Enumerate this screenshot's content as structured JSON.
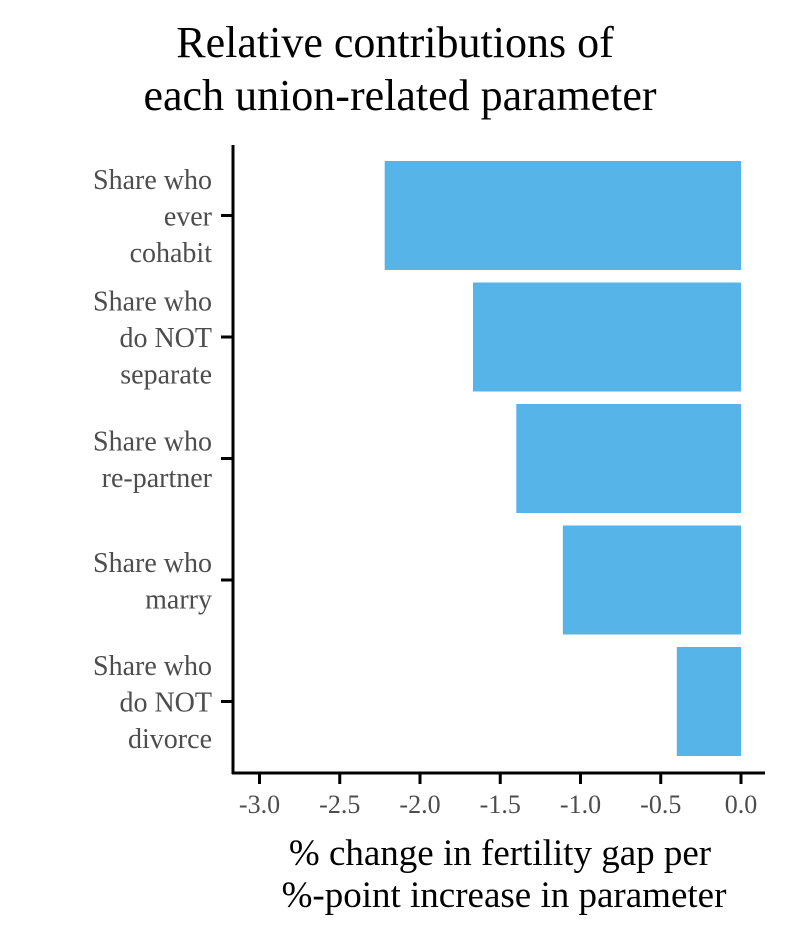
{
  "chart_data": {
    "type": "bar",
    "orientation": "horizontal",
    "title_lines": [
      "Relative contributions of",
      "each union-related parameter"
    ],
    "categories": [
      [
        "Share who",
        "ever",
        "cohabit"
      ],
      [
        "Share who",
        "do NOT",
        "separate"
      ],
      [
        "Share who",
        "re-partner"
      ],
      [
        "Share who",
        "marry"
      ],
      [
        "Share who",
        "do NOT",
        "divorce"
      ]
    ],
    "values": [
      -2.22,
      -1.67,
      -1.4,
      -1.11,
      -0.4
    ],
    "xlabel_lines": [
      "% change in fertility gap per",
      "%-point increase in parameter"
    ],
    "xticks": [
      "-3.0",
      "-2.5",
      "-2.0",
      "-1.5",
      "-1.0",
      "-0.5",
      "0.0"
    ],
    "xtick_values": [
      -3.0,
      -2.5,
      -2.0,
      -1.5,
      -1.0,
      -0.5,
      0.0
    ],
    "xlim": [
      -3.1,
      0.14
    ],
    "bar_color": "#56b4e9",
    "grid": false,
    "legend": "none"
  }
}
